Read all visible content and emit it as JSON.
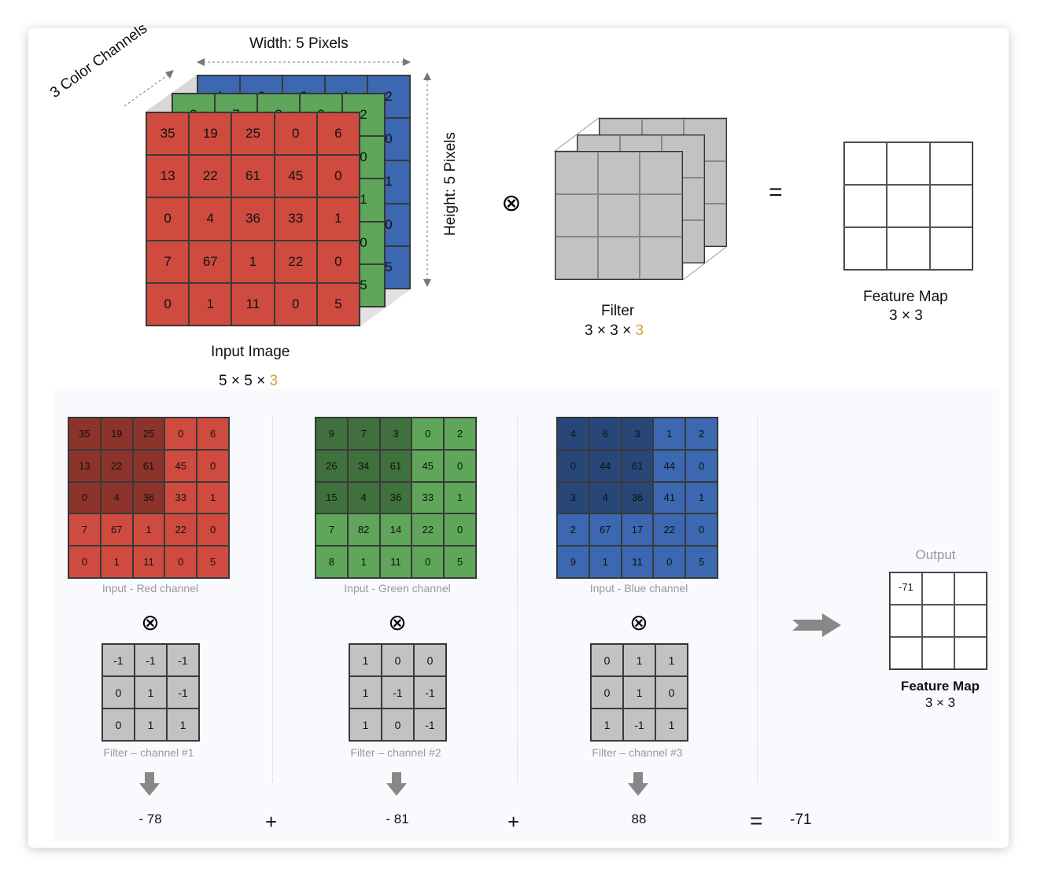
{
  "top": {
    "width_label": "Width: 5 Pixels",
    "height_label": "Height: 5 Pixels",
    "channels_label": "3 Color Channels",
    "input_title": "Input Image",
    "input_dims": "5 × 5 × ",
    "input_depth": "3",
    "filter_title": "Filter",
    "filter_dims": "3 × 3 × ",
    "filter_depth": "3",
    "feature_title": "Feature Map",
    "feature_dims": "3 × 3",
    "conv_symbol": "⊗",
    "equals_symbol": "="
  },
  "colors": {
    "red": "#cf4b3f",
    "green": "#5fa55a",
    "blue": "#3b68b0",
    "filter": "#c2c2c2",
    "depth_accent": "#d4a03a"
  },
  "channels": [
    {
      "name": "red",
      "label": "Input - Red channel",
      "values": [
        [
          35,
          19,
          25,
          0,
          6
        ],
        [
          13,
          22,
          61,
          45,
          0
        ],
        [
          0,
          4,
          36,
          33,
          1
        ],
        [
          7,
          67,
          1,
          22,
          0
        ],
        [
          0,
          1,
          11,
          0,
          5
        ]
      ],
      "filter_label": "Filter – channel #1",
      "filter": [
        [
          -1,
          -1,
          -1
        ],
        [
          0,
          1,
          -1
        ],
        [
          0,
          1,
          1
        ]
      ],
      "result": "- 78"
    },
    {
      "name": "green",
      "label": "Input - Green channel",
      "values": [
        [
          9,
          7,
          3,
          0,
          2
        ],
        [
          26,
          34,
          61,
          45,
          0
        ],
        [
          15,
          4,
          36,
          33,
          1
        ],
        [
          7,
          82,
          14,
          22,
          0
        ],
        [
          8,
          1,
          11,
          0,
          5
        ]
      ],
      "filter_label": "Filter – channel #2",
      "filter": [
        [
          1,
          0,
          0
        ],
        [
          1,
          -1,
          -1
        ],
        [
          1,
          0,
          -1
        ]
      ],
      "result": "- 81"
    },
    {
      "name": "blue",
      "label": "Input - Blue channel",
      "values": [
        [
          4,
          6,
          3,
          1,
          2
        ],
        [
          0,
          44,
          61,
          44,
          0
        ],
        [
          3,
          4,
          36,
          41,
          1
        ],
        [
          2,
          67,
          17,
          22,
          0
        ],
        [
          9,
          1,
          11,
          0,
          5
        ]
      ],
      "filter_label": "Filter – channel #3",
      "filter": [
        [
          0,
          1,
          1
        ],
        [
          0,
          1,
          0
        ],
        [
          1,
          -1,
          1
        ]
      ],
      "result": "88"
    }
  ],
  "bottom": {
    "plus": "+",
    "equals": "=",
    "total": "-71",
    "output_label": "Output",
    "feature_title": "Feature Map",
    "feature_dims": "3 × 3",
    "output_values": [
      [
        "-71",
        "",
        ""
      ],
      [
        "",
        "",
        ""
      ],
      [
        "",
        "",
        ""
      ]
    ]
  }
}
